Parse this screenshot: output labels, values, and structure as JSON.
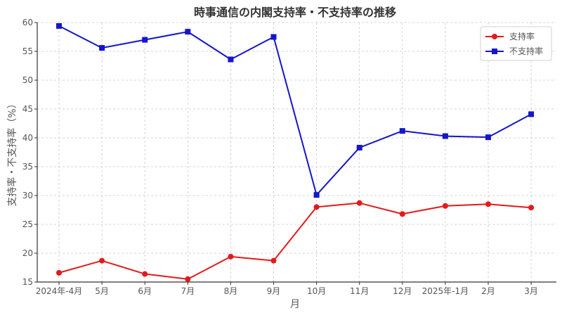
{
  "chart_data": {
    "type": "line",
    "title": "時事通信の内閣支持率・不支持率の推移",
    "xlabel": "月",
    "ylabel": "支持率・不支持率（%）",
    "categories": [
      "2024年-4月",
      "5月",
      "6月",
      "7月",
      "8月",
      "9月",
      "10月",
      "11月",
      "12月",
      "2025年-1月",
      "2月",
      "3月"
    ],
    "ylim": [
      15,
      60
    ],
    "yticks": [
      15,
      20,
      25,
      30,
      35,
      40,
      45,
      50,
      55,
      60
    ],
    "grid": true,
    "legend_position": "top-right",
    "series": [
      {
        "name": "支持率",
        "color": "#e31a1c",
        "marker": "circle",
        "values": [
          16.6,
          18.7,
          16.4,
          15.5,
          19.4,
          18.7,
          28.0,
          28.7,
          26.8,
          28.2,
          28.5,
          27.9
        ]
      },
      {
        "name": "不支持率",
        "color": "#1515cc",
        "marker": "square",
        "values": [
          59.4,
          55.6,
          57.0,
          58.4,
          53.6,
          57.5,
          30.1,
          38.3,
          41.2,
          40.3,
          40.1,
          44.1
        ]
      }
    ]
  }
}
